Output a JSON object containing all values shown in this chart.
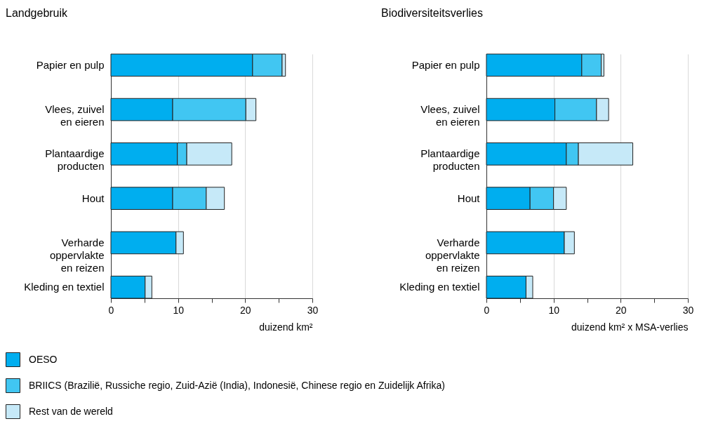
{
  "chart_data": [
    {
      "type": "bar",
      "orientation": "horizontal",
      "stacked": true,
      "title": "Landgebruik",
      "xlabel": "duizend km²",
      "categories": [
        "Papier en pulp",
        "Vlees, zuivel\nen eieren",
        "Plantaardige\nproducten",
        "Hout",
        "Verharde\noppervlakte\nen reizen",
        "Kleding en textiel"
      ],
      "series": [
        {
          "name": "OESO",
          "color": "#00aeef",
          "values": [
            21.1,
            9.2,
            9.9,
            9.2,
            9.7,
            5.1
          ]
        },
        {
          "name": "BRIICS (Brazilië,  Russiche regio, Zuid-Azië (India), Indonesië, Chinese regio en Zuidelijk Afrika)",
          "color": "#41c6f2",
          "values": [
            4.4,
            10.9,
            1.4,
            5.0,
            null,
            null
          ]
        },
        {
          "name": "Rest van de wereld",
          "color": "#c6e9f8",
          "values": [
            0.5,
            1.5,
            6.7,
            2.7,
            1.1,
            1.0
          ]
        }
      ],
      "xlim": [
        0,
        30
      ],
      "xticks": [
        0,
        {
          "value": 5,
          "label": null
        },
        10,
        {
          "value": 15,
          "label": null
        },
        20,
        {
          "value": 25,
          "label": null
        },
        30
      ],
      "grid": "x",
      "legend": "bottom"
    },
    {
      "type": "bar",
      "orientation": "horizontal",
      "stacked": true,
      "title": "Biodiversiteitsverlies",
      "xlabel": "duizend km² x MSA-verlies",
      "categories": [
        "Papier en pulp",
        "Vlees, zuivel\nen eieren",
        "Plantaardige\nproducten",
        "Hout",
        "Verharde\noppervlakte\nen reizen",
        "Kleding en textiel"
      ],
      "series": [
        {
          "name": "OESO",
          "color": "#00aeef",
          "values": [
            14.2,
            10.2,
            11.9,
            6.5,
            11.6,
            5.9
          ]
        },
        {
          "name": "BRIICS (Brazilië,  Russiche regio, Zuid-Azië (India), Indonesië, Chinese regio en Zuidelijk Afrika)",
          "color": "#41c6f2",
          "values": [
            2.9,
            6.2,
            1.8,
            3.5,
            null,
            null
          ]
        },
        {
          "name": "Rest van de wereld",
          "color": "#c6e9f8",
          "values": [
            0.4,
            1.8,
            8.1,
            1.9,
            1.5,
            1.0
          ]
        }
      ],
      "xlim": [
        0,
        30
      ],
      "xticks": [
        0,
        {
          "value": 5,
          "label": null
        },
        10,
        {
          "value": 15,
          "label": null
        },
        20,
        {
          "value": 25,
          "label": null
        },
        30
      ],
      "grid": "x",
      "legend": "bottom"
    }
  ]
}
